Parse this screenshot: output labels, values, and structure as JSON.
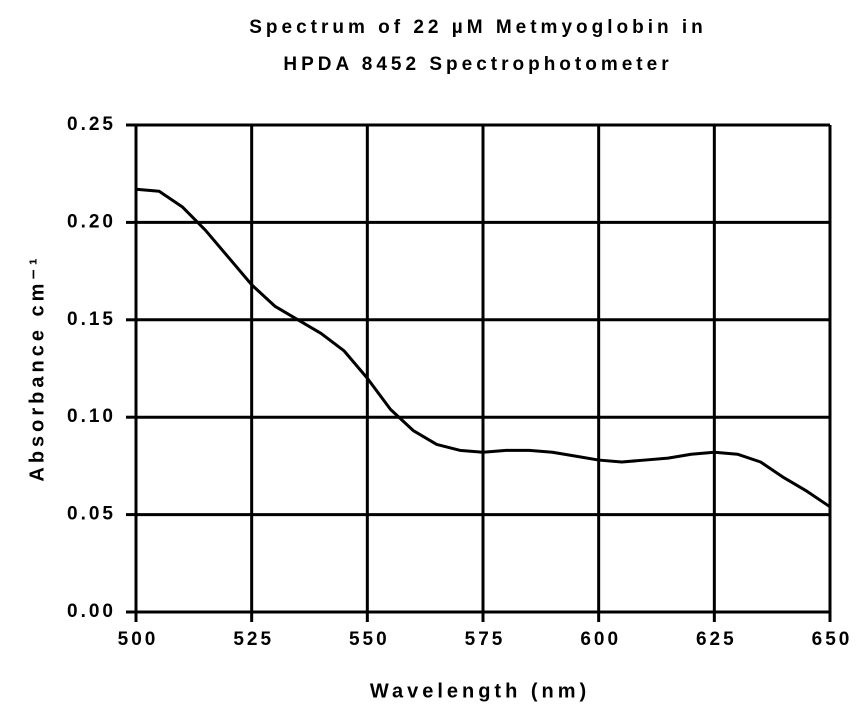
{
  "chart_data": {
    "type": "line",
    "title": [
      "Spectrum of 22 µM Metmyoglobin in",
      "HPDA 8452 Spectrophotometer"
    ],
    "x_label": "Wavelength (nm)",
    "y_label": "Absorbance cm⁻¹",
    "x": [
      500,
      505,
      510,
      515,
      520,
      525,
      530,
      535,
      540,
      545,
      550,
      555,
      560,
      565,
      570,
      575,
      580,
      585,
      590,
      595,
      600,
      605,
      610,
      615,
      620,
      625,
      630,
      635,
      640,
      645,
      650
    ],
    "values": [
      0.217,
      0.216,
      0.208,
      0.196,
      0.182,
      0.168,
      0.157,
      0.15,
      0.143,
      0.134,
      0.12,
      0.104,
      0.093,
      0.086,
      0.083,
      0.082,
      0.083,
      0.083,
      0.082,
      0.08,
      0.078,
      0.077,
      0.078,
      0.079,
      0.081,
      0.082,
      0.081,
      0.077,
      0.069,
      0.062,
      0.054
    ],
    "color": "#000000",
    "xlim": [
      500,
      650
    ],
    "xticks": [
      500,
      525,
      550,
      575,
      600,
      625,
      650
    ],
    "ylim": [
      0,
      0.25
    ],
    "yticks": [
      {
        "value": 0,
        "label": "0.00"
      },
      0.05,
      {
        "value": 0.1,
        "label": "0.10"
      },
      0.15,
      {
        "value": 0.2,
        "label": "0.20"
      },
      0.25
    ],
    "grid": true
  }
}
